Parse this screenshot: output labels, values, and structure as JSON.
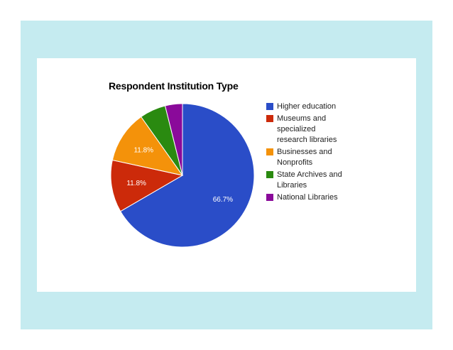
{
  "chart_data": {
    "type": "pie",
    "title": "Respondent Institution Type",
    "categories": [
      "Higher education",
      "Museums and\nspecialized\nresearch libraries",
      "Businesses and\nNonprofits",
      "State Archives and\nLibraries",
      "National Libraries"
    ],
    "values": [
      66.7,
      11.8,
      11.8,
      5.9,
      3.9
    ],
    "data_labels": [
      "66.7%",
      "11.8%",
      "11.8%",
      "",
      ""
    ],
    "colors": [
      "#2a4dc8",
      "#cc2a0a",
      "#f4920a",
      "#2a8a10",
      "#8a0a9a"
    ],
    "legend_position": "right",
    "start_angle": "12 o'clock, clockwise"
  }
}
